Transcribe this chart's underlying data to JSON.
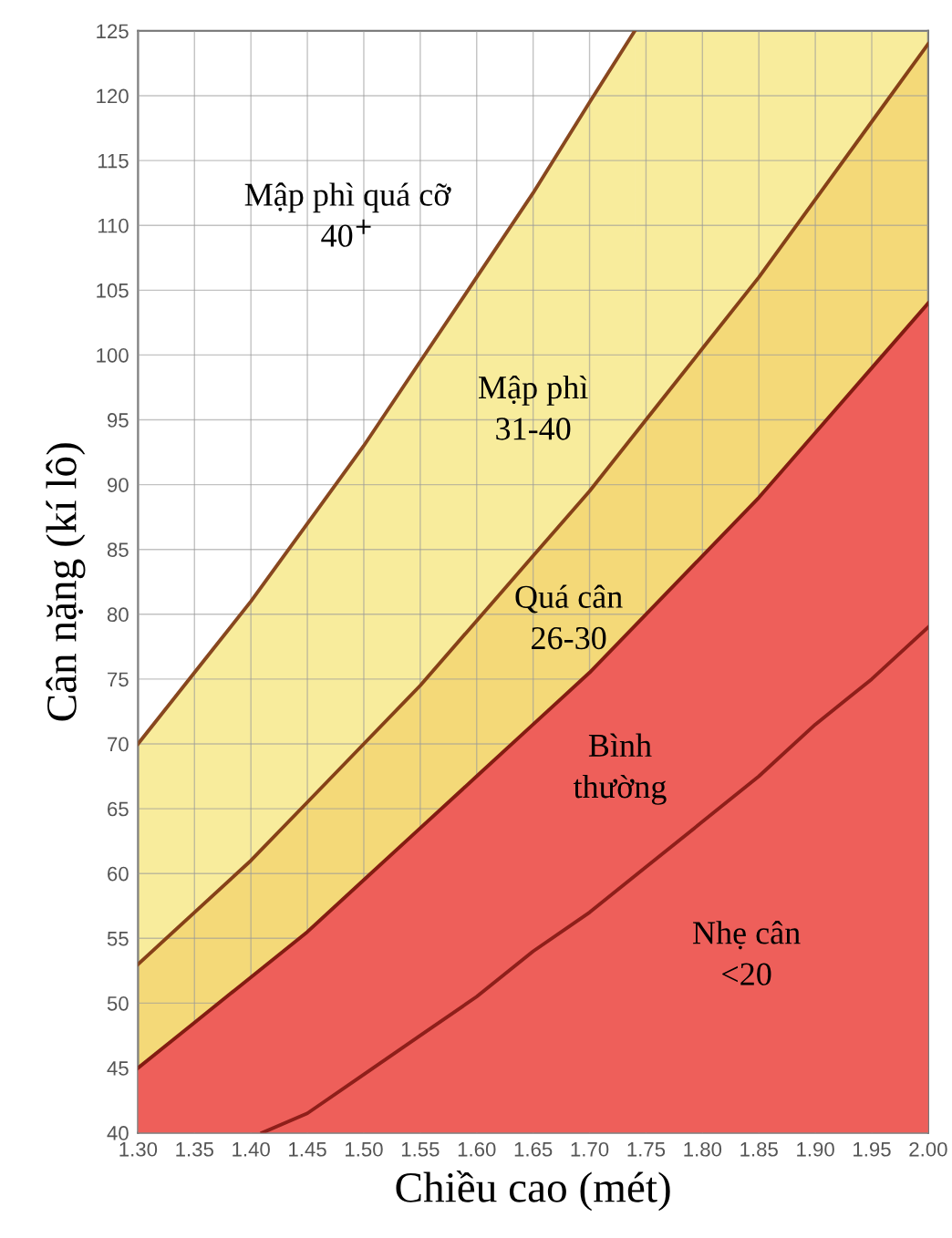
{
  "chart_data": {
    "type": "area",
    "xlabel": "Chiều cao (mét)",
    "ylabel": "Cân nặng (kí lô)",
    "xlim": [
      1.3,
      2.0
    ],
    "ylim": [
      40,
      125
    ],
    "xticks": [
      {
        "value": 1.3,
        "label": "1.30"
      },
      {
        "value": 1.35,
        "label": "1.35"
      },
      {
        "value": 1.4,
        "label": "1.40"
      },
      {
        "value": 1.45,
        "label": "1.45"
      },
      {
        "value": 1.5,
        "label": "1.50"
      },
      {
        "value": 1.55,
        "label": "1.55"
      },
      {
        "value": 1.6,
        "label": "1.60"
      },
      {
        "value": 1.65,
        "label": "1.65"
      },
      {
        "value": 1.7,
        "label": "1.70"
      },
      {
        "value": 1.75,
        "label": "1.75"
      },
      {
        "value": 1.8,
        "label": "1.80"
      },
      {
        "value": 1.85,
        "label": "1.85"
      },
      {
        "value": 1.9,
        "label": "1.90"
      },
      {
        "value": 1.95,
        "label": "1.95"
      },
      {
        "value": 2.0,
        "label": "2.00"
      }
    ],
    "yticks": [
      40,
      45,
      50,
      55,
      60,
      65,
      70,
      75,
      80,
      85,
      90,
      95,
      100,
      105,
      110,
      115,
      120,
      125
    ],
    "grid": true,
    "bands": [
      {
        "axis": "x",
        "from": 1.74,
        "to": 2.0,
        "color": "#f8ec9c"
      }
    ],
    "series": [
      {
        "color": "#f8ec9c",
        "x": [
          1.3,
          1.35,
          1.4,
          1.45,
          1.5,
          1.55,
          1.6,
          1.65,
          1.7,
          1.74
        ],
        "values": [
          70,
          75.5,
          81,
          87,
          93,
          99.5,
          106,
          112.5,
          119.5,
          125
        ]
      },
      {
        "color": "#f4d978",
        "x": [
          1.3,
          1.35,
          1.4,
          1.45,
          1.5,
          1.55,
          1.6,
          1.65,
          1.7,
          1.75,
          1.8,
          1.85,
          1.9,
          1.95,
          2.0
        ],
        "values": [
          53,
          57,
          61,
          65.5,
          70,
          74.5,
          79.5,
          84.5,
          89.5,
          95,
          100.5,
          106,
          112,
          118,
          124
        ]
      },
      {
        "color": "#ee5f5a",
        "x": [
          1.3,
          1.35,
          1.4,
          1.45,
          1.5,
          1.55,
          1.6,
          1.65,
          1.7,
          1.75,
          1.8,
          1.85,
          1.9,
          1.95,
          2.0
        ],
        "values": [
          45,
          48.5,
          52,
          55.5,
          59.5,
          63.5,
          67.5,
          71.5,
          75.5,
          80,
          84.5,
          89,
          94,
          99,
          104
        ]
      },
      {
        "type": "line",
        "color": "#8e1f1a",
        "x": [
          1.41,
          1.45,
          1.5,
          1.55,
          1.6,
          1.65,
          1.7,
          1.75,
          1.8,
          1.85,
          1.9,
          1.95,
          2.0
        ],
        "values": [
          40,
          41.5,
          44.5,
          47.5,
          50.5,
          54,
          57,
          60.5,
          64,
          67.5,
          71.5,
          75,
          79
        ]
      }
    ],
    "annotations": [
      "Mập phì quá cỡ\n40$^{+}$",
      "Mập phì\n31-40",
      "Quá cân\n26-30",
      "Bình\nthường",
      "Nhẹ cân\n<20"
    ]
  }
}
